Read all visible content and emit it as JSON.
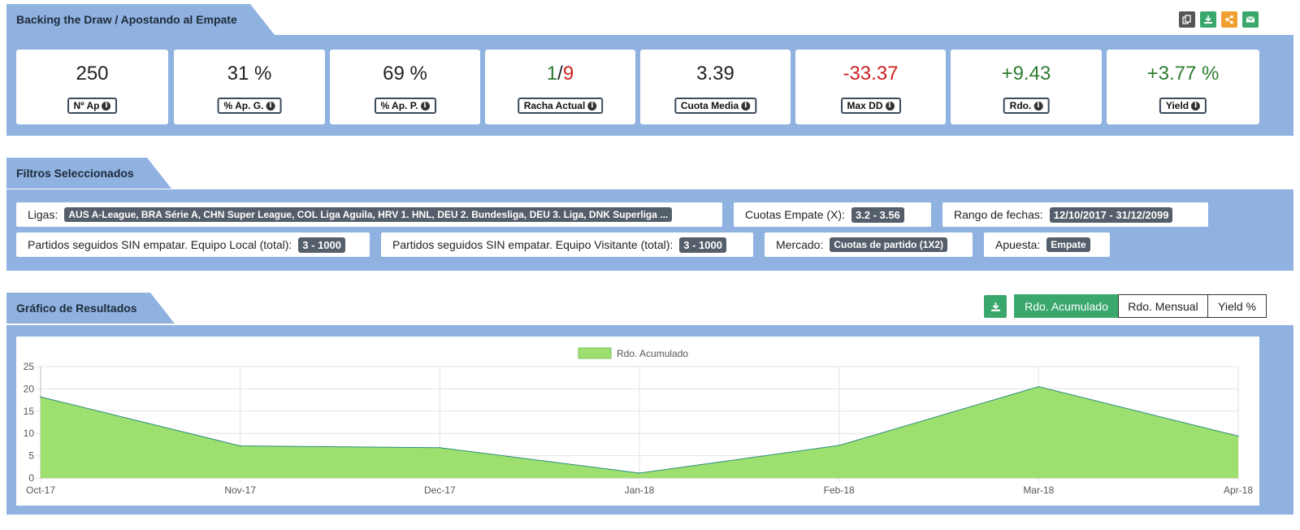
{
  "header": {
    "title": "Backing the Draw / Apostando al Empate",
    "actions": [
      {
        "name": "copy-icon",
        "color": "#555555"
      },
      {
        "name": "download-icon",
        "color": "#3aa76d"
      },
      {
        "name": "share-icon",
        "color": "#f0a030"
      },
      {
        "name": "email-icon",
        "color": "#3aa76d"
      }
    ]
  },
  "stats": [
    {
      "value": "250",
      "label": "Nº Ap"
    },
    {
      "value": "31 %",
      "label": "% Ap. G."
    },
    {
      "value": "69 %",
      "label": "% Ap. P."
    },
    {
      "value_good": "1",
      "value_sep": "/",
      "value_bad": "9",
      "label": "Racha Actual"
    },
    {
      "value": "3.39",
      "label": "Cuota Media"
    },
    {
      "value": "-33.37",
      "label": "Max DD",
      "color": "#cc1f1f"
    },
    {
      "value": "+9.43",
      "label": "Rdo.",
      "color": "#2e7d32"
    },
    {
      "value": "+3.77 %",
      "label": "Yield",
      "color": "#2e7d32"
    }
  ],
  "filters": {
    "title": "Filtros Seleccionados",
    "items": [
      {
        "label": "Ligas:",
        "value": "AUS A-League, BRA Série A, CHN Super League, COL Liga Aguila, HRV 1. HNL, DEU 2. Bundesliga, DEU 3. Liga, DNK Superliga ..."
      },
      {
        "label": "Cuotas Empate (X):",
        "value": "3.2 - 3.56"
      },
      {
        "label": "Rango de fechas:",
        "value": "12/10/2017 - 31/12/2099"
      },
      {
        "label": "Partidos seguidos SIN empatar. Equipo Local (total):",
        "value": "3 - 1000"
      },
      {
        "label": "Partidos seguidos SIN empatar. Equipo Visitante (total):",
        "value": "3 - 1000"
      },
      {
        "label": "Mercado:",
        "value": "Cuotas de partido (1X2)"
      },
      {
        "label": "Apuesta:",
        "value": "Empate"
      }
    ]
  },
  "results": {
    "title": "Gráfico de Resultados",
    "download_icon": "download-icon",
    "toggles": [
      "Rdo. Acumulado",
      "Rdo. Mensual",
      "Yield %"
    ],
    "active_toggle": "Rdo. Acumulado"
  },
  "chart_data": {
    "type": "area",
    "categories": [
      "Oct-17",
      "Nov-17",
      "Dec-17",
      "Jan-18",
      "Feb-18",
      "Mar-18",
      "Apr-18"
    ],
    "series": [
      {
        "name": "Rdo. Acumulado",
        "values": [
          18.2,
          7.2,
          6.8,
          1.1,
          7.3,
          20.5,
          9.4
        ],
        "color": "#9de070"
      }
    ],
    "yticks": [
      0,
      5,
      10,
      15,
      20,
      25
    ],
    "ylim": [
      0,
      25
    ],
    "grid": true,
    "legend": "top-center"
  }
}
